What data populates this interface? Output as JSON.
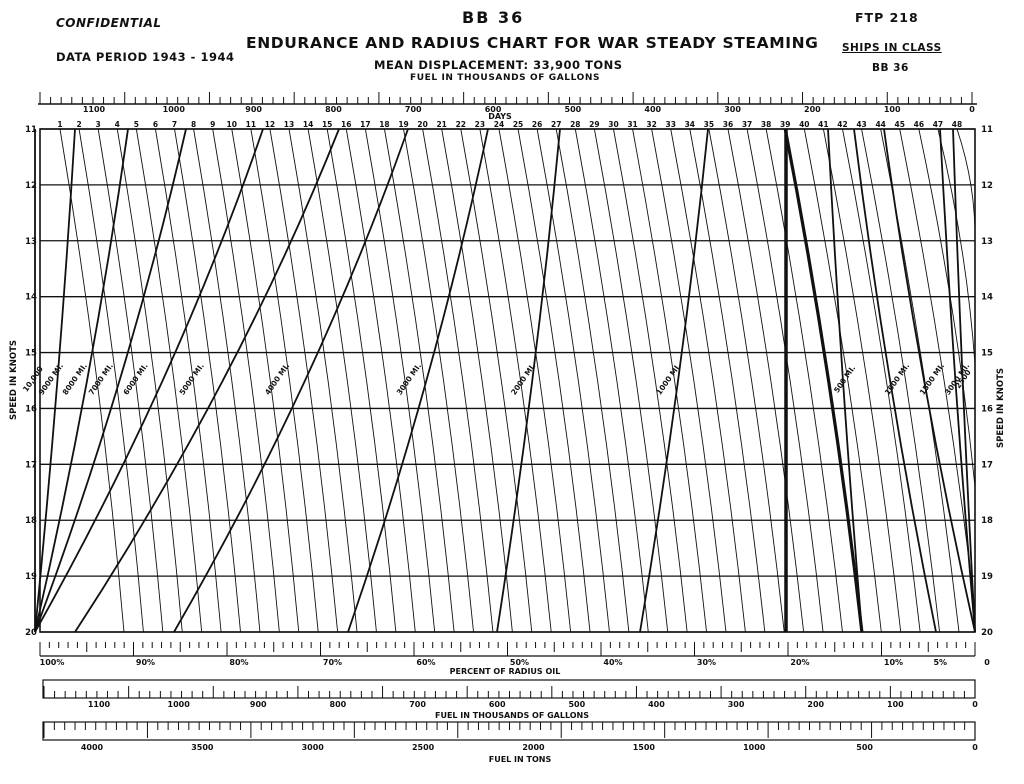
{
  "header": {
    "confidential": "CONFIDENTIAL",
    "ship_id": "BB 36",
    "title": "ENDURANCE AND RADIUS CHART FOR WAR STEADY STEAMING",
    "displacement": "MEAN DISPLACEMENT: 33,900 TONS",
    "fuel_top_label": "FUEL IN THOUSANDS OF GALLONS",
    "data_period": "DATA PERIOD 1943 - 1944",
    "ftp": "FTP 218",
    "ships_in_class_label": "SHIPS IN CLASS",
    "ships_in_class_value": "BB 36"
  },
  "chart_data": {
    "type": "line",
    "title": "ENDURANCE AND RADIUS CHART FOR WAR STEADY STEAMING",
    "ylabel": "SPEED IN KNOTS",
    "ylim": [
      11,
      20
    ],
    "y_ticks": [
      "11",
      "12",
      "13",
      "14",
      "15",
      "16",
      "17",
      "18",
      "19",
      "20"
    ],
    "xlabel_top": "DAYS",
    "days_ticks": [
      "1",
      "2",
      "3",
      "4",
      "5",
      "6",
      "7",
      "8",
      "9",
      "10",
      "11",
      "12",
      "13",
      "14",
      "15",
      "16",
      "17",
      "18",
      "19",
      "20",
      "21",
      "22",
      "23",
      "24",
      "25",
      "26",
      "27",
      "28",
      "29",
      "30",
      "31",
      "32",
      "33",
      "34",
      "35",
      "36",
      "37",
      "38",
      "39",
      "40",
      "41",
      "42",
      "43",
      "44",
      "45",
      "46",
      "47",
      "48"
    ],
    "fuel_gallons_top_ticks": [
      "1100",
      "1000",
      "900",
      "800",
      "700",
      "600",
      "500",
      "400",
      "300",
      "200",
      "100",
      "0"
    ],
    "xlabel_percent": "PERCENT OF RADIUS OIL",
    "percent_ticks": [
      "100%",
      "90%",
      "80%",
      "70%",
      "60%",
      "50%",
      "40%",
      "30%",
      "20%",
      "10%",
      "5%",
      "0"
    ],
    "xlabel_gallons": "FUEL IN THOUSANDS OF GALLONS",
    "gallons_ticks": [
      "1100",
      "1000",
      "900",
      "800",
      "700",
      "600",
      "500",
      "400",
      "300",
      "200",
      "100",
      "0"
    ],
    "xlabel_tons": "FUEL IN TONS",
    "tons_ticks": [
      "4000",
      "3500",
      "3000",
      "2500",
      "2000",
      "1500",
      "1000",
      "500",
      "0"
    ],
    "miles_curves": [
      {
        "miles": 10000,
        "label": "10,000",
        "x_at_11": 35,
        "x_at_20": 35
      },
      {
        "miles": 9000,
        "label": "9000 MI.",
        "x_at_11": 75,
        "x_at_20": 35
      },
      {
        "miles": 8000,
        "label": "8000 MI.",
        "x_at_11": 128,
        "x_at_20": 35
      },
      {
        "miles": 7000,
        "label": "7000 MI.",
        "x_at_11": 186,
        "x_at_20": 35
      },
      {
        "miles": 6000,
        "label": "6000 MI.",
        "x_at_11": 263,
        "x_at_20": 35
      },
      {
        "miles": 5000,
        "label": "5000 MI.",
        "x_at_11": 339,
        "x_at_20": 75
      },
      {
        "miles": 4000,
        "label": "4000 MI.",
        "x_at_11": 408,
        "x_at_20": 174
      },
      {
        "miles": 3000,
        "label": "3000 MI.",
        "x_at_11": 488,
        "x_at_20": 348
      },
      {
        "miles": 2000,
        "label": "2000 MI.",
        "x_at_11": 560,
        "x_at_20": 497
      },
      {
        "miles": 1000,
        "label": "1000 MI.",
        "x_at_11": 708,
        "x_at_20": 640
      },
      {
        "miles": 500,
        "label": "500 MI.",
        "x_at_11": 828,
        "x_at_20": 862
      },
      {
        "miles": 1000,
        "label": "1000 MI.",
        "x_at_11": 854,
        "x_at_20": 936
      },
      {
        "miles": 1500,
        "label": "1500 MI.",
        "x_at_11": 884,
        "x_at_20": 975
      },
      {
        "miles": 3000,
        "label": "3000 MI.",
        "x_at_11": 940,
        "x_at_20": 975
      },
      {
        "miles": 2500,
        "label": "2500",
        "x_at_11": 953,
        "x_at_20": 975
      }
    ],
    "day_lines_count": 48
  }
}
